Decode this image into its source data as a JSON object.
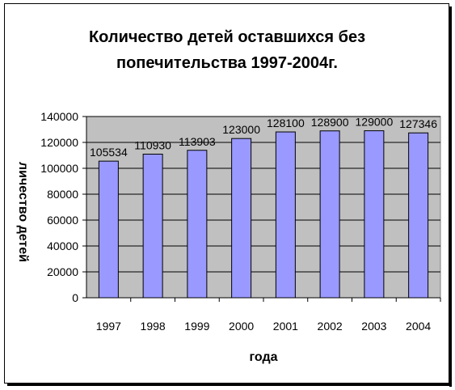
{
  "chart_data": {
    "type": "bar",
    "title_lines": [
      "Количество детей оставшихся без",
      "попечительства 1997-2004г."
    ],
    "categories": [
      "1997",
      "1998",
      "1999",
      "2000",
      "2001",
      "2002",
      "2003",
      "2004"
    ],
    "values": [
      105534,
      110930,
      113903,
      123000,
      128100,
      128900,
      129000,
      127346
    ],
    "data_labels": [
      "105534",
      "110930",
      "113903",
      "123000",
      "128100",
      "128900",
      "129000",
      "127346"
    ],
    "xlabel": "года",
    "ylabel": "личество детей",
    "ylim": [
      0,
      140000
    ],
    "yticks": [
      "0",
      "20000",
      "40000",
      "60000",
      "80000",
      "100000",
      "120000",
      "140000"
    ],
    "grid": true,
    "plot_background": "#c0c0c0",
    "bar_color": "#9999ff"
  }
}
